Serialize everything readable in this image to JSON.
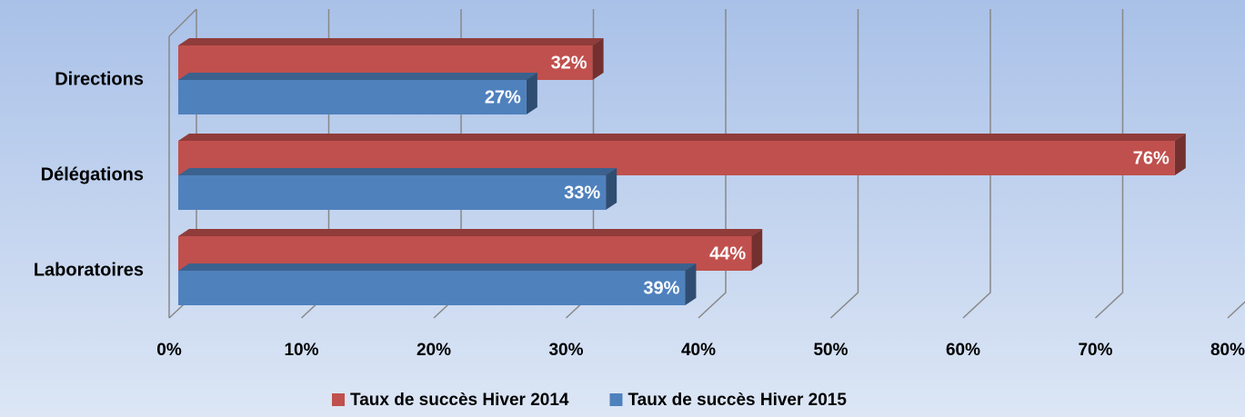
{
  "chart_data": {
    "type": "bar3d_horizontal",
    "categories": [
      "Directions",
      "Délégations",
      "Laboratoires"
    ],
    "series": [
      {
        "name": "Taux de succès Hiver 2014",
        "color": "#c0504d",
        "values": [
          32,
          76,
          44
        ],
        "value_labels": [
          "32%",
          "76%",
          "44%"
        ]
      },
      {
        "name": "Taux de succès Hiver 2015",
        "color": "#4f81bd",
        "values": [
          27,
          33,
          39
        ],
        "value_labels": [
          "27%",
          "33%",
          "39%"
        ]
      }
    ],
    "xlim": [
      0,
      80
    ],
    "xticks": [
      {
        "value": 0,
        "label": "0%"
      },
      {
        "value": 10,
        "label": "10%"
      },
      {
        "value": 20,
        "label": "20%"
      },
      {
        "value": 30,
        "label": "30%"
      },
      {
        "value": 40,
        "label": "40%"
      },
      {
        "value": 50,
        "label": "50%"
      },
      {
        "value": 60,
        "label": "60%"
      },
      {
        "value": 70,
        "label": "70%"
      },
      {
        "value": 80,
        "label": "80%"
      }
    ],
    "grid": true,
    "legend": "bottom"
  }
}
